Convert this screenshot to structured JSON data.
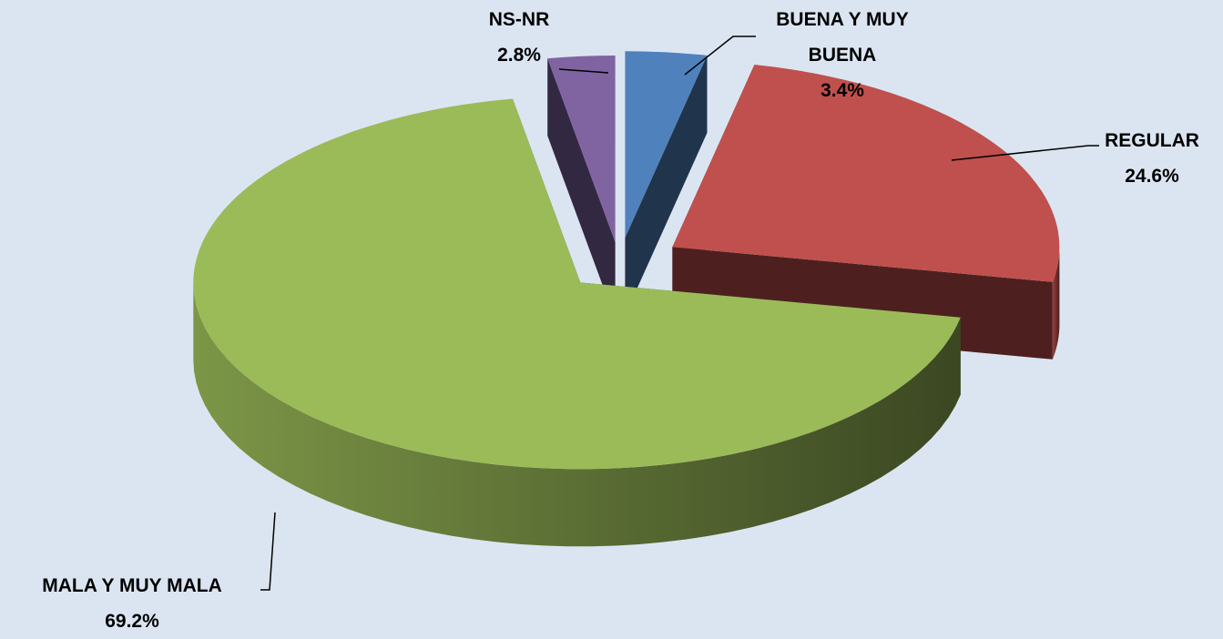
{
  "chart_data": {
    "type": "pie",
    "categories": [
      "BUENA Y MUY BUENA",
      "REGULAR",
      "MALA Y MUY MALA",
      "NS-NR"
    ],
    "values": [
      3.4,
      24.6,
      69.2,
      2.8
    ],
    "value_labels": [
      "3.4%",
      "24.6%",
      "69.2%",
      "2.8%"
    ],
    "colors": [
      "#4f81bd",
      "#c0504d",
      "#9bbb59",
      "#8064a2"
    ]
  }
}
